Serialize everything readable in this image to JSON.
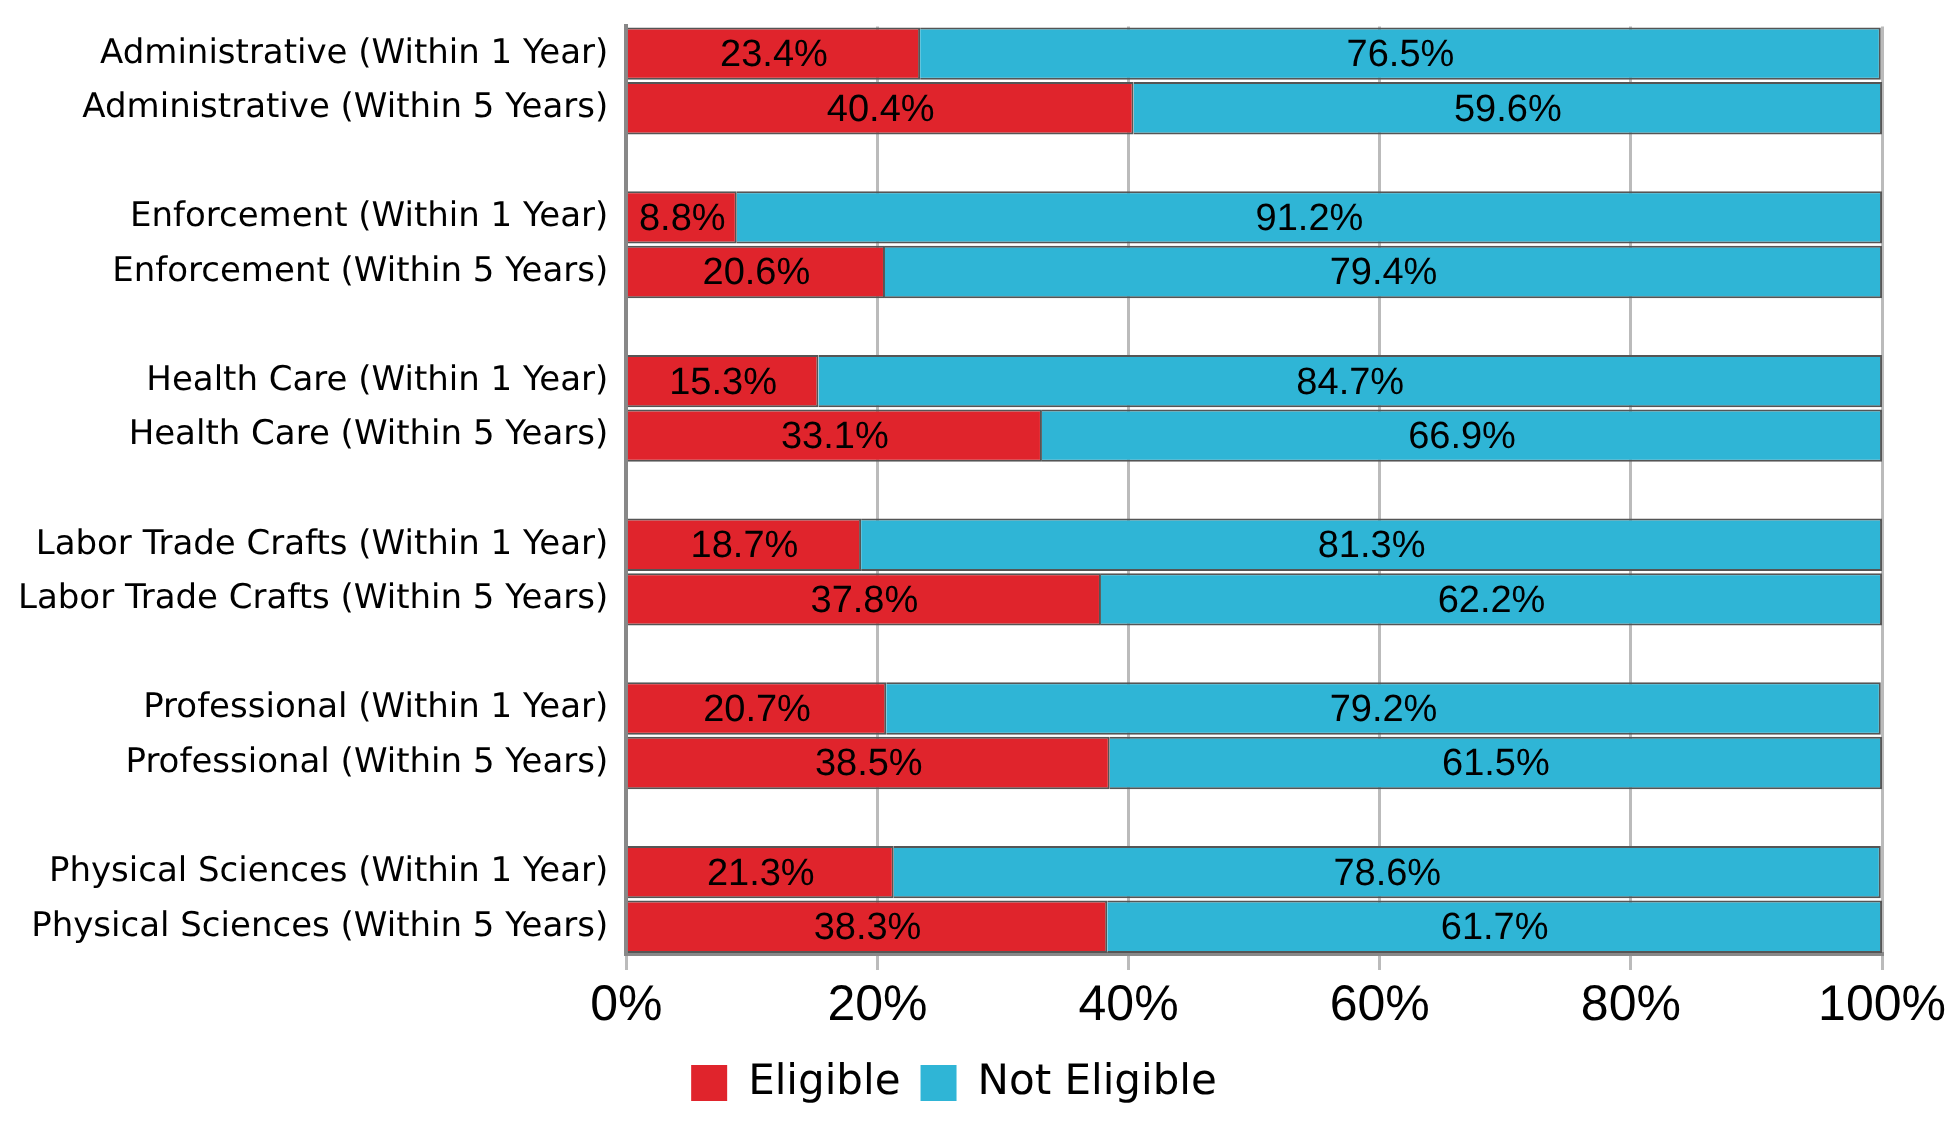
{
  "chart_data": {
    "type": "bar",
    "orientation": "horizontal",
    "stacked": true,
    "categories": [
      "Administrative (Within 1 Year)",
      "Administrative (Within 5 Years)",
      null,
      "Enforcement (Within 1 Year)",
      "Enforcement (Within 5 Years)",
      null,
      "Health Care (Within 1 Year)",
      "Health Care (Within 5 Years)",
      null,
      "Labor Trade Crafts (Within 1 Year)",
      "Labor Trade Crafts (Within 5 Years)",
      null,
      "Professional (Within 1 Year)",
      "Professional (Within 5 Years)",
      null,
      "Physical Sciences (Within 1 Year)",
      "Physical Sciences (Within 5 Years)"
    ],
    "series": [
      {
        "name": "Eligible",
        "color": "#e0242c",
        "values": [
          23.4,
          40.4,
          null,
          8.8,
          20.6,
          null,
          15.3,
          33.1,
          null,
          18.7,
          37.8,
          null,
          20.7,
          38.5,
          null,
          21.3,
          38.3
        ],
        "value_labels": [
          "23.4%",
          "40.4%",
          null,
          "8.8%",
          "20.6%",
          null,
          "15.3%",
          "33.1%",
          null,
          "18.7%",
          "37.8%",
          null,
          "20.7%",
          "38.5%",
          null,
          "21.3%",
          "38.3%"
        ]
      },
      {
        "name": "Not Eligible",
        "color": "#2fb5d6",
        "values": [
          76.5,
          59.6,
          null,
          91.2,
          79.4,
          null,
          84.7,
          66.9,
          null,
          81.3,
          62.2,
          null,
          79.2,
          61.5,
          null,
          78.6,
          61.7
        ],
        "value_labels": [
          "76.5%",
          "59.6%",
          null,
          "91.2%",
          "79.4%",
          null,
          "84.7%",
          "66.9%",
          null,
          "81.3%",
          "62.2%",
          null,
          "79.2%",
          "61.5%",
          null,
          "78.6%",
          "61.7%"
        ]
      }
    ],
    "xlim": [
      0,
      100
    ],
    "xticks": [
      {
        "value": 0,
        "label": "0%"
      },
      {
        "value": 20,
        "label": "20%"
      },
      {
        "value": 40,
        "label": "40%"
      },
      {
        "value": 60,
        "label": "60%"
      },
      {
        "value": 80,
        "label": "80%"
      },
      {
        "value": 100,
        "label": "100%"
      }
    ],
    "grid": "x",
    "legend": "bottom"
  }
}
